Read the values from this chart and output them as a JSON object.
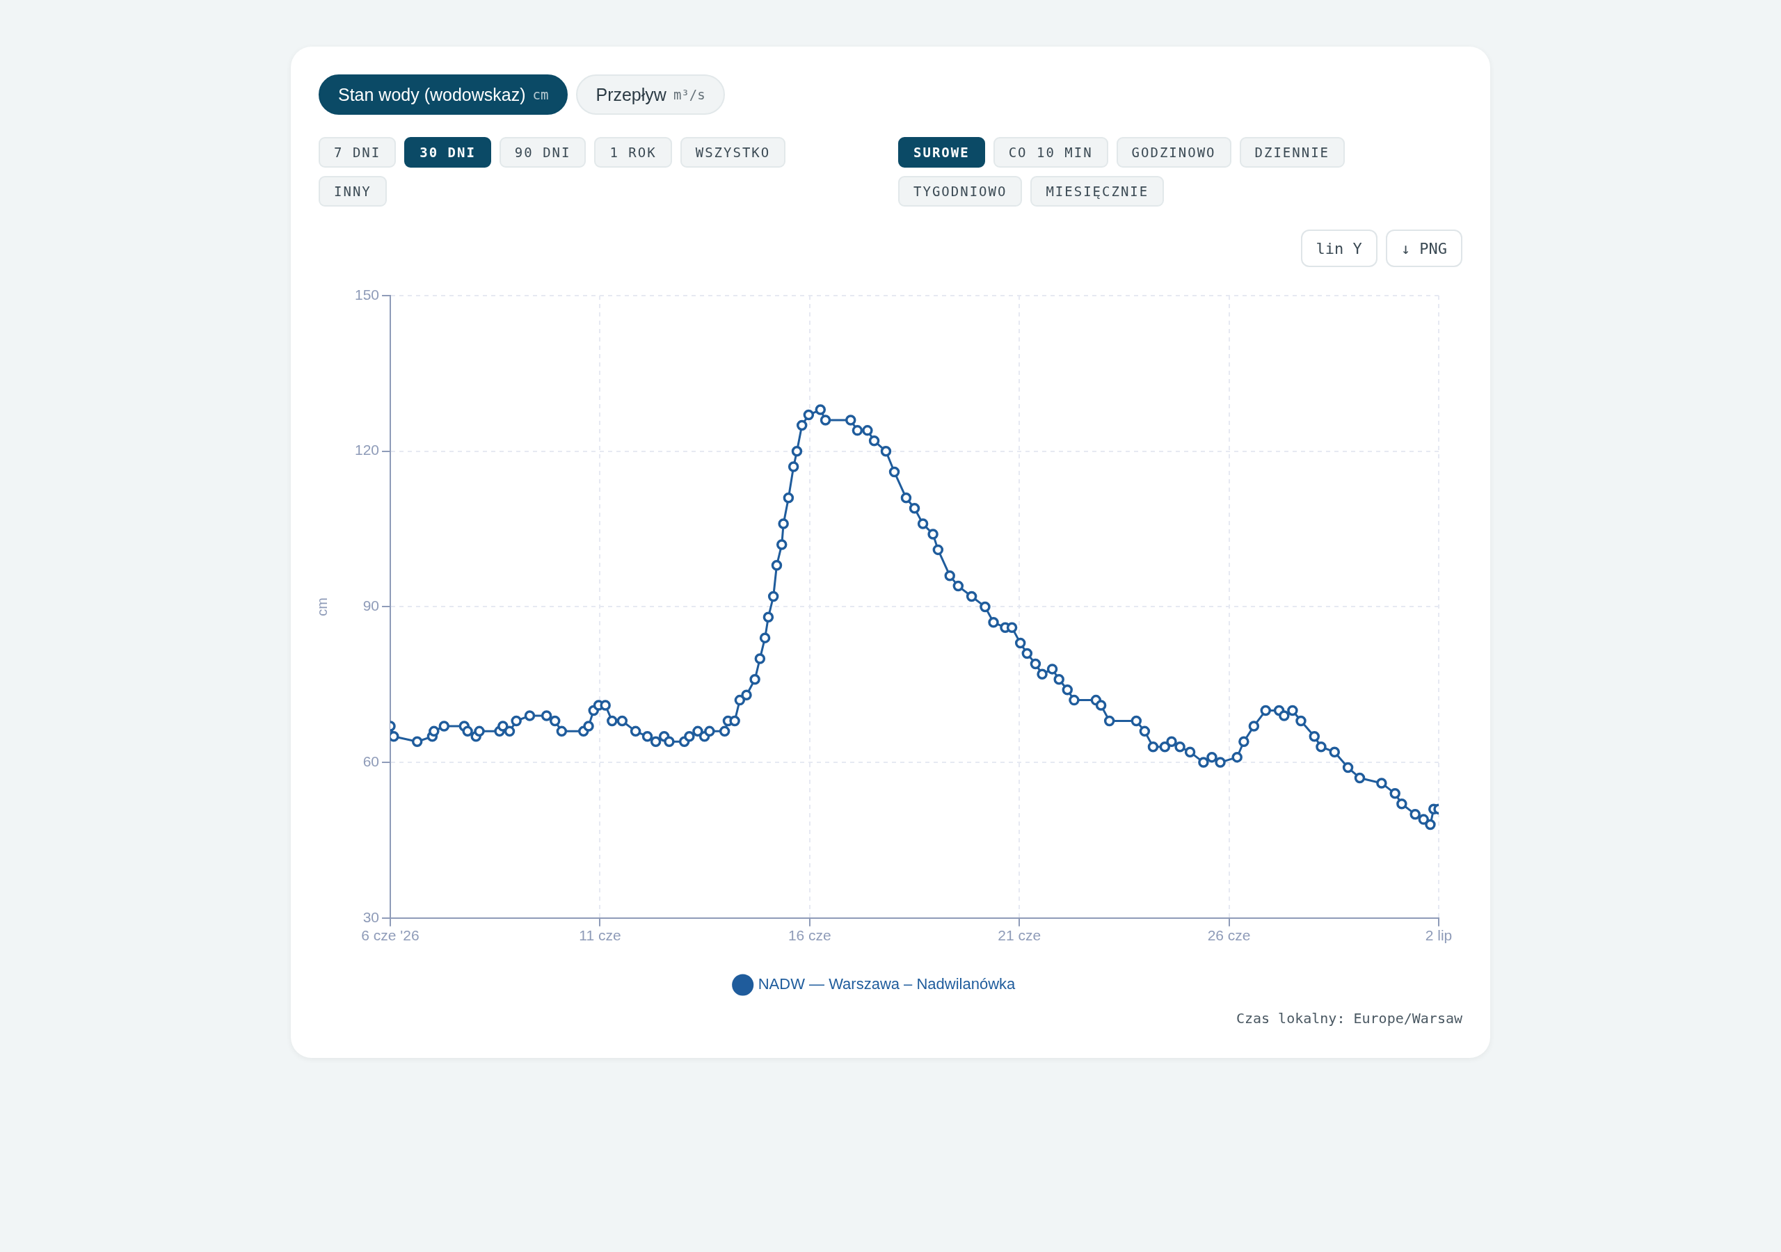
{
  "chart_data": {
    "type": "line",
    "ylabel": "cm",
    "annotations": [
      "Stan wody (wodowskaz)",
      "cm",
      "Przepływ",
      "m³/s",
      "7 DNI",
      "30 DNI",
      "90 DNI",
      "1 ROK",
      "WSZYSTKO",
      "INNY",
      "SUROWE",
      "CO 10 MIN",
      "GODZINOWO",
      "DZIENNIE",
      "TYGODNIOWO",
      "MIESIĘCZNIE",
      "lin Y",
      "↓ PNG",
      "Czas lokalny: Europe/Warsaw"
    ],
    "xlim": [
      "2026-06-06T00:00",
      "2026-07-02T00:00"
    ],
    "xticks": [
      {
        "value": "2026-06-06T00:00",
        "label": "6 cze '26"
      },
      {
        "value": "2026-06-11T04:48",
        "label": "11 cze"
      },
      {
        "value": "2026-06-16T09:36",
        "label": "16 cze"
      },
      {
        "value": "2026-06-21T14:24",
        "label": "21 cze"
      },
      {
        "value": "2026-06-26T19:12",
        "label": "26 cze"
      },
      {
        "value": "2026-07-02T00:00",
        "label": "2 lip"
      }
    ],
    "ylim": [
      30,
      150
    ],
    "yticks": [
      30,
      60,
      90,
      120,
      150
    ],
    "grid": true,
    "legend": "bottom",
    "marker": "circle",
    "line_style": "solid",
    "series": [
      {
        "name": "NADW — Warszawa – Nadwilanówka",
        "color": "#1f5c9c",
        "x": [
          "2026-06-06T00:00",
          "2026-06-06T02:00",
          "2026-06-06T16:00",
          "2026-06-07T01:00",
          "2026-06-07T02:00",
          "2026-06-07T08:00",
          "2026-06-07T20:00",
          "2026-06-07T22:00",
          "2026-06-08T03:00",
          "2026-06-08T05:00",
          "2026-06-08T17:00",
          "2026-06-08T19:00",
          "2026-06-08T23:00",
          "2026-06-09T03:00",
          "2026-06-09T11:00",
          "2026-06-09T21:00",
          "2026-06-10T02:00",
          "2026-06-10T06:00",
          "2026-06-10T19:00",
          "2026-06-10T22:00",
          "2026-06-11T01:00",
          "2026-06-11T04:00",
          "2026-06-11T08:00",
          "2026-06-11T12:00",
          "2026-06-11T18:00",
          "2026-06-12T02:00",
          "2026-06-12T09:00",
          "2026-06-12T14:00",
          "2026-06-12T19:00",
          "2026-06-12T22:00",
          "2026-06-13T07:00",
          "2026-06-13T10:00",
          "2026-06-13T15:00",
          "2026-06-13T19:00",
          "2026-06-13T22:00",
          "2026-06-14T07:00",
          "2026-06-14T09:00",
          "2026-06-14T13:00",
          "2026-06-14T16:00",
          "2026-06-14T20:00",
          "2026-06-15T01:00",
          "2026-06-15T04:00",
          "2026-06-15T07:00",
          "2026-06-15T09:00",
          "2026-06-15T12:00",
          "2026-06-15T14:00",
          "2026-06-15T17:00",
          "2026-06-15T18:00",
          "2026-06-15T21:00",
          "2026-06-16T00:00",
          "2026-06-16T02:00",
          "2026-06-16T05:00",
          "2026-06-16T09:00",
          "2026-06-16T16:00",
          "2026-06-16T19:00",
          "2026-06-17T10:00",
          "2026-06-17T14:00",
          "2026-06-17T20:00",
          "2026-06-18T00:00",
          "2026-06-18T07:00",
          "2026-06-18T12:00",
          "2026-06-18T19:00",
          "2026-06-19T00:00",
          "2026-06-19T05:00",
          "2026-06-19T11:00",
          "2026-06-19T14:00",
          "2026-06-19T21:00",
          "2026-06-20T02:00",
          "2026-06-20T10:00",
          "2026-06-20T18:00",
          "2026-06-20T23:00",
          "2026-06-21T06:00",
          "2026-06-21T10:00",
          "2026-06-21T15:00",
          "2026-06-21T19:00",
          "2026-06-22T00:00",
          "2026-06-22T04:00",
          "2026-06-22T10:00",
          "2026-06-22T14:00",
          "2026-06-22T19:00",
          "2026-06-22T23:00",
          "2026-06-23T12:00",
          "2026-06-23T15:00",
          "2026-06-23T20:00",
          "2026-06-24T12:00",
          "2026-06-24T17:00",
          "2026-06-24T22:00",
          "2026-06-25T05:00",
          "2026-06-25T09:00",
          "2026-06-25T14:00",
          "2026-06-25T20:00",
          "2026-06-26T04:00",
          "2026-06-26T09:00",
          "2026-06-26T14:00",
          "2026-06-27T00:00",
          "2026-06-27T04:00",
          "2026-06-27T10:00",
          "2026-06-27T17:00",
          "2026-06-28T01:00",
          "2026-06-28T04:00",
          "2026-06-28T09:00",
          "2026-06-28T14:00",
          "2026-06-28T22:00",
          "2026-06-29T02:00",
          "2026-06-29T10:00",
          "2026-06-29T18:00",
          "2026-06-30T01:00",
          "2026-06-30T14:00",
          "2026-06-30T22:00",
          "2026-07-01T02:00",
          "2026-07-01T10:00",
          "2026-07-01T15:00",
          "2026-07-01T19:00",
          "2026-07-01T21:00",
          "2026-07-02T00:00"
        ],
        "values": [
          67,
          65,
          64,
          65,
          66,
          67,
          67,
          66,
          65,
          66,
          66,
          67,
          66,
          68,
          69,
          69,
          68,
          66,
          66,
          67,
          70,
          71,
          71,
          68,
          68,
          66,
          65,
          64,
          65,
          64,
          64,
          65,
          66,
          65,
          66,
          66,
          68,
          68,
          72,
          73,
          76,
          80,
          84,
          88,
          92,
          98,
          102,
          106,
          111,
          117,
          120,
          125,
          127,
          128,
          126,
          126,
          124,
          124,
          122,
          120,
          116,
          111,
          109,
          106,
          104,
          101,
          96,
          94,
          92,
          90,
          87,
          86,
          86,
          83,
          81,
          79,
          77,
          78,
          76,
          74,
          72,
          72,
          71,
          68,
          68,
          66,
          63,
          63,
          64,
          63,
          62,
          60,
          61,
          60,
          61,
          64,
          67,
          70,
          70,
          69,
          70,
          68,
          65,
          63,
          62,
          59,
          57,
          56,
          54,
          52,
          50,
          49,
          48,
          51,
          51
        ]
      }
    ]
  }
}
